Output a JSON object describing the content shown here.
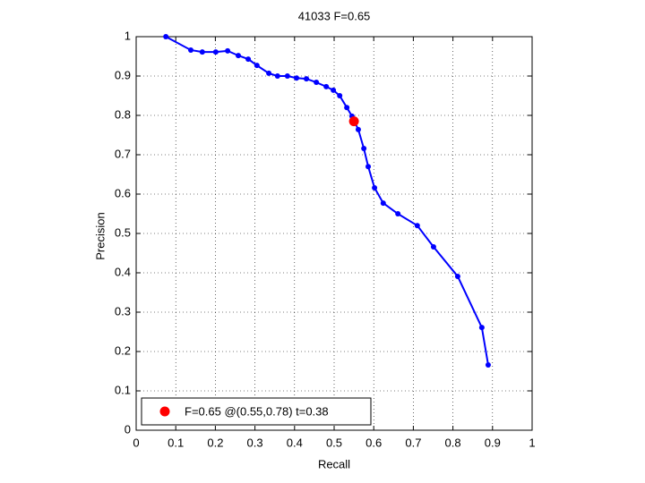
{
  "chart_data": {
    "type": "line",
    "title": "41033 F=0.65",
    "x_label": "Recall",
    "y_label": "Precision",
    "xlim": [
      0,
      1
    ],
    "ylim": [
      0,
      1
    ],
    "xticks": [
      0,
      0.1,
      0.2,
      0.3,
      0.4,
      0.5,
      0.6,
      0.7,
      0.8,
      0.9,
      1
    ],
    "yticks": [
      0,
      0.1,
      0.2,
      0.3,
      0.4,
      0.5,
      0.6,
      0.7,
      0.8,
      0.9,
      1
    ],
    "grid": true,
    "legend": "lower left",
    "series": [
      {
        "color": "#0000ff",
        "style": "line-markers",
        "x": [
          0.075,
          0.138,
          0.167,
          0.201,
          0.231,
          0.258,
          0.283,
          0.305,
          0.335,
          0.357,
          0.382,
          0.405,
          0.43,
          0.455,
          0.48,
          0.498,
          0.514,
          0.532,
          0.545,
          0.561,
          0.575,
          0.586,
          0.602,
          0.624,
          0.661,
          0.71,
          0.751,
          0.812,
          0.873,
          0.889
        ],
        "values": [
          1.0,
          0.966,
          0.961,
          0.961,
          0.964,
          0.952,
          0.943,
          0.927,
          0.907,
          0.9,
          0.9,
          0.895,
          0.893,
          0.884,
          0.873,
          0.864,
          0.85,
          0.82,
          0.798,
          0.764,
          0.716,
          0.67,
          0.616,
          0.577,
          0.55,
          0.52,
          0.466,
          0.391,
          0.261,
          0.166
        ]
      },
      {
        "name": "F=0.65 @(0.55,0.78) t=0.38",
        "color": "#ff0000",
        "style": "markers",
        "x": [
          0.55
        ],
        "values": [
          0.785
        ]
      }
    ]
  }
}
